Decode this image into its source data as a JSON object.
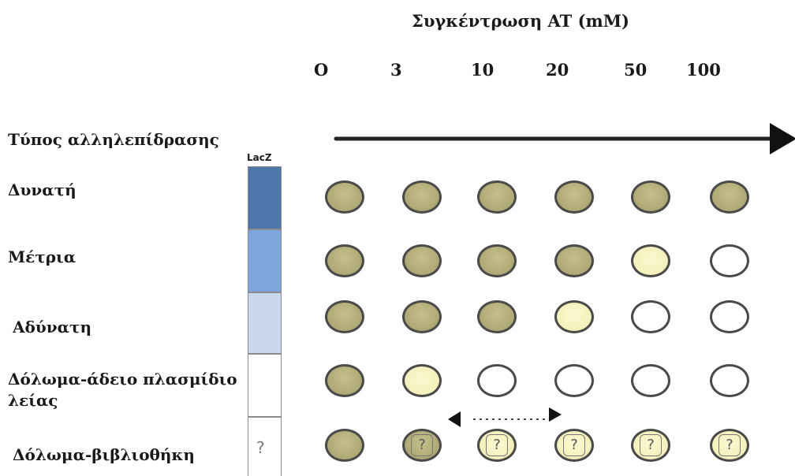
{
  "title": "Συγκέντρωση AT (mM)",
  "concentrations": [
    "O",
    "3",
    "10",
    "20",
    "50",
    "100"
  ],
  "interaction_header": "Τύπος αλληλεπίδρασης",
  "lacz_label": "LacZ",
  "bar_question": "?",
  "rows": [
    {
      "label": "Δυνατή",
      "wells": [
        "dark",
        "dark",
        "dark",
        "dark",
        "dark",
        "dark"
      ],
      "bar_color": "#4f77ab"
    },
    {
      "label": "Μέτρια",
      "wells": [
        "dark",
        "dark",
        "dark",
        "dark",
        "light",
        "empty"
      ],
      "bar_color": "#7ea5dc"
    },
    {
      "label": "Αδύνατη",
      "wells": [
        "dark",
        "dark",
        "dark",
        "light",
        "empty",
        "empty"
      ],
      "bar_color": "#c9d7ef"
    },
    {
      "label_line1": "Δόλωμα-άδειο πλασμίδιο",
      "label_line2": "λείας",
      "wells": [
        "dark",
        "light",
        "empty",
        "empty",
        "empty",
        "empty"
      ],
      "bar_color": "#ffffff"
    },
    {
      "label": "Δόλωμα-βιβλιοθήκη",
      "wells": [
        "dark",
        "dark-q",
        "light-q",
        "light-q",
        "light-q",
        "light-q"
      ],
      "bar_color": "#ffffff"
    }
  ],
  "well_question": "?",
  "colors": {
    "dark_well": "#aea874",
    "light_well": "#f4efb8",
    "well_border": "#4a4a4a",
    "arrow": "#222222"
  }
}
